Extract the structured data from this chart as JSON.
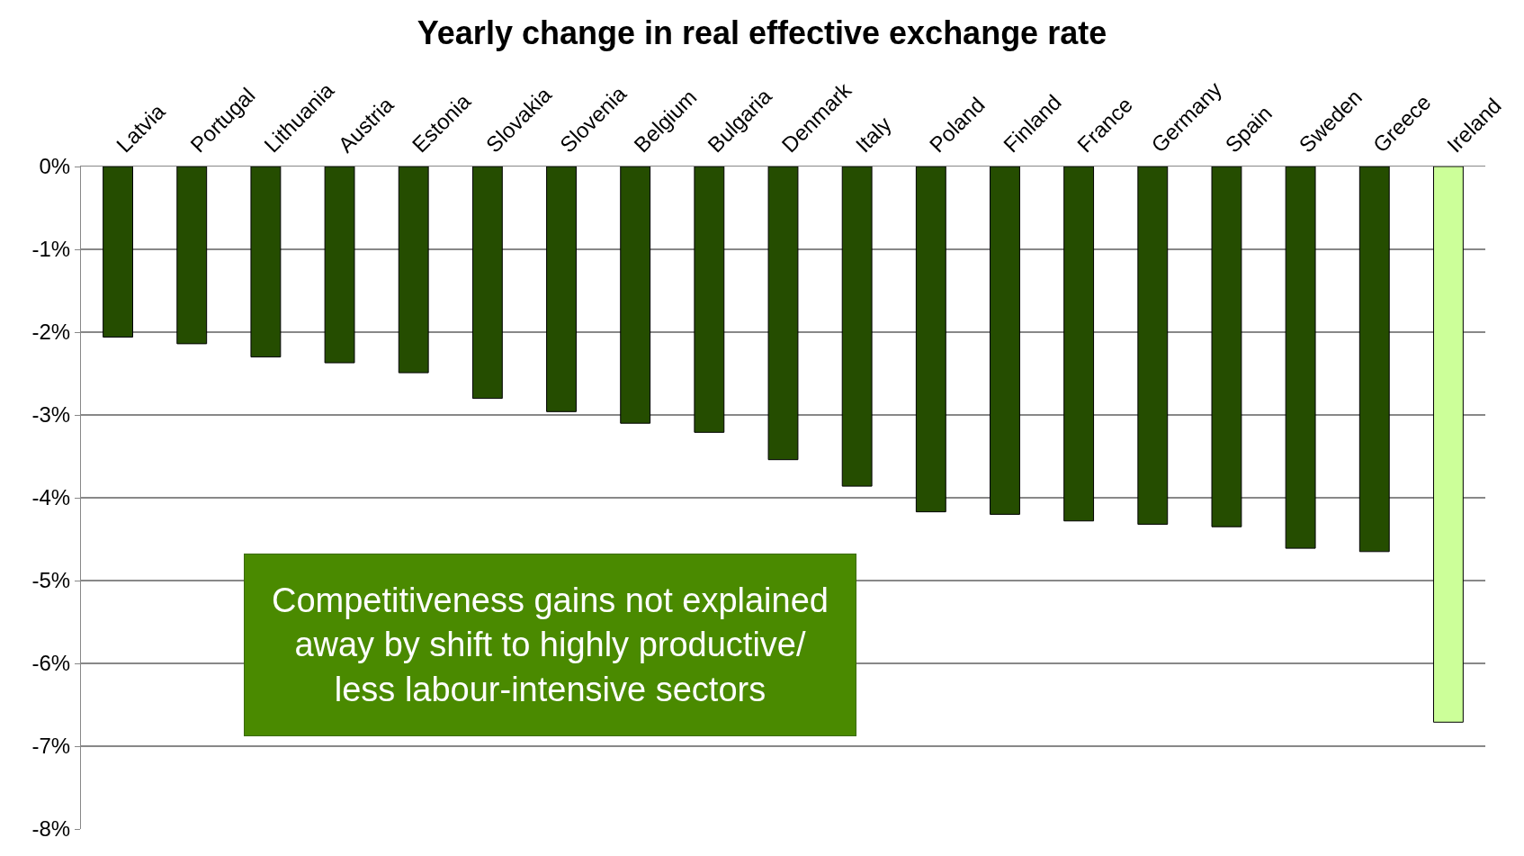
{
  "chart_data": {
    "type": "bar",
    "title": "Yearly change in real effective exchange rate",
    "categories": [
      "Latvia",
      "Portugal",
      "Lithuania",
      "Austria",
      "Estonia",
      "Slovakia",
      "Slovenia",
      "Belgium",
      "Bulgaria",
      "Denmark",
      "Italy",
      "Poland",
      "Finland",
      "France",
      "Germany",
      "Spain",
      "Sweden",
      "Greece",
      "Ireland"
    ],
    "values": [
      -2.06,
      -2.14,
      -2.3,
      -2.37,
      -2.49,
      -2.8,
      -2.96,
      -3.1,
      -3.21,
      -3.54,
      -3.86,
      -4.17,
      -4.2,
      -4.28,
      -4.32,
      -4.35,
      -4.61,
      -4.65,
      -6.71
    ],
    "colors": [
      "#254d00",
      "#254d00",
      "#254d00",
      "#254d00",
      "#254d00",
      "#254d00",
      "#254d00",
      "#254d00",
      "#254d00",
      "#254d00",
      "#254d00",
      "#254d00",
      "#254d00",
      "#254d00",
      "#254d00",
      "#254d00",
      "#254d00",
      "#254d00",
      "#ccff99"
    ],
    "ylim": [
      -8,
      0
    ],
    "yticks": [
      {
        "value": 0,
        "label": "0%"
      },
      {
        "value": -1,
        "label": "-1%"
      },
      {
        "value": -2,
        "label": "-2%"
      },
      {
        "value": -3,
        "label": "-3%"
      },
      {
        "value": -4,
        "label": "-4%"
      },
      {
        "value": -5,
        "label": "-5%"
      },
      {
        "value": -6,
        "label": "-6%"
      },
      {
        "value": -7,
        "label": "-7%"
      },
      {
        "value": -8,
        "label": "-8%"
      }
    ],
    "grid": "y",
    "legend": false,
    "annotations": [
      "Competitiveness gains not explained\naway by shift to highly productive/\nless labour-intensive sectors"
    ]
  }
}
